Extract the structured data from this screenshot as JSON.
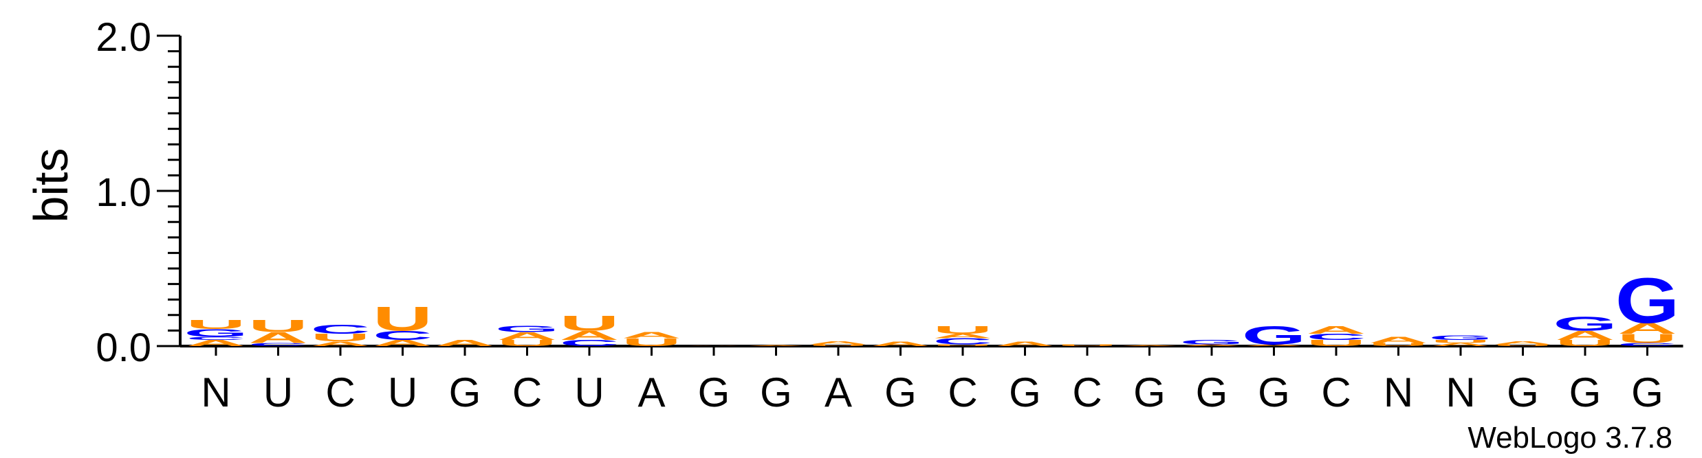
{
  "chart_data": {
    "type": "sequence-logo",
    "ylabel": "bits",
    "ylim": [
      0,
      2.0
    ],
    "yticks": [
      "0.0",
      "1.0",
      "2.0"
    ],
    "watermark": "WebLogo 3.7.8",
    "colors": {
      "A": "#ff8c00",
      "C": "#0000ff",
      "G": "#0000ff",
      "U": "#ff8c00",
      "N": "#000000"
    },
    "positions": [
      {
        "label": "N",
        "stack": [
          {
            "letter": "A",
            "bits": 0.04
          },
          {
            "letter": "C",
            "bits": 0.02
          },
          {
            "letter": "G",
            "bits": 0.05
          },
          {
            "letter": "U",
            "bits": 0.06
          }
        ]
      },
      {
        "label": "U",
        "stack": [
          {
            "letter": "C",
            "bits": 0.02
          },
          {
            "letter": "A",
            "bits": 0.07
          },
          {
            "letter": "U",
            "bits": 0.08
          }
        ]
      },
      {
        "label": "C",
        "stack": [
          {
            "letter": "A",
            "bits": 0.03
          },
          {
            "letter": "U",
            "bits": 0.05
          },
          {
            "letter": "C",
            "bits": 0.06
          }
        ]
      },
      {
        "label": "U",
        "stack": [
          {
            "letter": "A",
            "bits": 0.04
          },
          {
            "letter": "C",
            "bits": 0.06
          },
          {
            "letter": "U",
            "bits": 0.16
          }
        ]
      },
      {
        "label": "G",
        "stack": [
          {
            "letter": "A",
            "bits": 0.04
          }
        ]
      },
      {
        "label": "C",
        "stack": [
          {
            "letter": "U",
            "bits": 0.04
          },
          {
            "letter": "A",
            "bits": 0.05
          },
          {
            "letter": "G",
            "bits": 0.04
          }
        ]
      },
      {
        "label": "U",
        "stack": [
          {
            "letter": "C",
            "bits": 0.04
          },
          {
            "letter": "A",
            "bits": 0.06
          },
          {
            "letter": "U",
            "bits": 0.1
          }
        ]
      },
      {
        "label": "A",
        "stack": [
          {
            "letter": "U",
            "bits": 0.05
          },
          {
            "letter": "A",
            "bits": 0.04
          }
        ]
      },
      {
        "label": "G",
        "stack": [
          {
            "letter": "A",
            "bits": 0.004
          }
        ]
      },
      {
        "label": "G",
        "stack": [
          {
            "letter": "A",
            "bits": 0.006
          }
        ]
      },
      {
        "label": "A",
        "stack": [
          {
            "letter": "U",
            "bits": 0.01
          },
          {
            "letter": "A",
            "bits": 0.02
          }
        ]
      },
      {
        "label": "G",
        "stack": [
          {
            "letter": "A",
            "bits": 0.03
          }
        ]
      },
      {
        "label": "C",
        "stack": [
          {
            "letter": "U",
            "bits": 0.01
          },
          {
            "letter": "C",
            "bits": 0.04
          },
          {
            "letter": "A",
            "bits": 0.03
          },
          {
            "letter": "U",
            "bits": 0.05
          }
        ]
      },
      {
        "label": "G",
        "stack": [
          {
            "letter": "A",
            "bits": 0.03
          }
        ]
      },
      {
        "label": "C",
        "stack": [
          {
            "letter": "U",
            "bits": 0.01
          }
        ]
      },
      {
        "label": "G",
        "stack": [
          {
            "letter": "A",
            "bits": 0.006
          }
        ]
      },
      {
        "label": "G",
        "stack": [
          {
            "letter": "A",
            "bits": 0.01
          },
          {
            "letter": "G",
            "bits": 0.03
          }
        ]
      },
      {
        "label": "G",
        "stack": [
          {
            "letter": "A",
            "bits": 0.01
          },
          {
            "letter": "G",
            "bits": 0.12
          }
        ]
      },
      {
        "label": "C",
        "stack": [
          {
            "letter": "U",
            "bits": 0.04
          },
          {
            "letter": "C",
            "bits": 0.04
          },
          {
            "letter": "A",
            "bits": 0.05
          }
        ]
      },
      {
        "label": "N",
        "stack": [
          {
            "letter": "U",
            "bits": 0.02
          },
          {
            "letter": "A",
            "bits": 0.04
          }
        ]
      },
      {
        "label": "N",
        "stack": [
          {
            "letter": "A",
            "bits": 0.02
          },
          {
            "letter": "U",
            "bits": 0.02
          },
          {
            "letter": "G",
            "bits": 0.03
          }
        ]
      },
      {
        "label": "G",
        "stack": [
          {
            "letter": "U",
            "bits": 0.01
          },
          {
            "letter": "A",
            "bits": 0.02
          }
        ]
      },
      {
        "label": "G",
        "stack": [
          {
            "letter": "U",
            "bits": 0.04
          },
          {
            "letter": "A",
            "bits": 0.06
          },
          {
            "letter": "G",
            "bits": 0.09
          }
        ]
      },
      {
        "label": "G",
        "stack": [
          {
            "letter": "C",
            "bits": 0.02
          },
          {
            "letter": "U",
            "bits": 0.06
          },
          {
            "letter": "A",
            "bits": 0.07
          },
          {
            "letter": "G",
            "bits": 0.3
          }
        ]
      }
    ]
  }
}
